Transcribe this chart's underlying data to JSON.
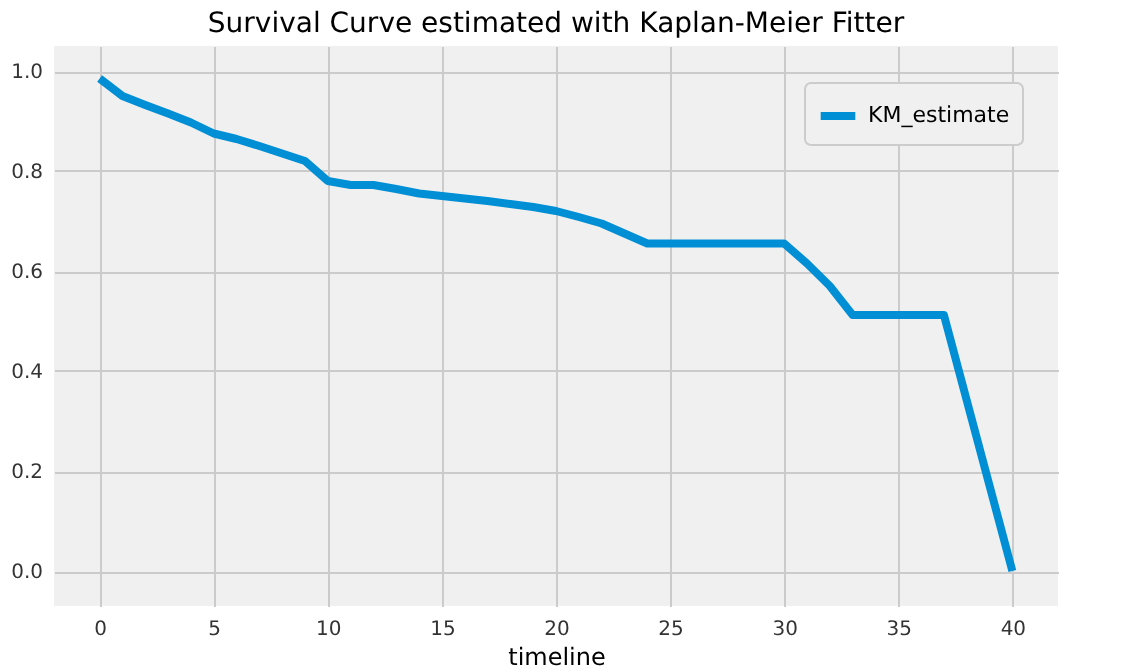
{
  "chart_data": {
    "type": "line",
    "title": "Survival Curve estimated with Kaplan-Meier Fitter",
    "xlabel": "timeline",
    "x": [
      0,
      1,
      2,
      3,
      4,
      5,
      6,
      7,
      8,
      9,
      10,
      11,
      12,
      13,
      14,
      15,
      16,
      17,
      18,
      19,
      20,
      21,
      22,
      23,
      24,
      25,
      26,
      27,
      28,
      29,
      30,
      31,
      32,
      33,
      34,
      35,
      36,
      37,
      40
    ],
    "series": [
      {
        "name": "KM_estimate",
        "color": "#008fd5",
        "values": [
          0.985,
          0.95,
          0.932,
          0.915,
          0.897,
          0.875,
          0.864,
          0.85,
          0.835,
          0.82,
          0.78,
          0.772,
          0.772,
          0.764,
          0.755,
          0.75,
          0.745,
          0.74,
          0.734,
          0.728,
          0.72,
          0.708,
          0.695,
          0.675,
          0.655,
          0.655,
          0.655,
          0.655,
          0.655,
          0.655,
          0.655,
          0.615,
          0.57,
          0.512,
          0.512,
          0.512,
          0.512,
          0.512,
          0.0
        ]
      }
    ],
    "xlim": [
      -2,
      42
    ],
    "xticks": [
      0,
      5,
      10,
      15,
      20,
      25,
      30,
      35,
      40
    ],
    "ylim": [
      -0.07,
      1.05
    ],
    "yticks": [
      {
        "value": 0,
        "label": "0.0"
      },
      0.2,
      0.4,
      0.6,
      0.8,
      {
        "value": 1,
        "label": "1.0"
      }
    ],
    "grid": true,
    "legend": "top right",
    "marker": "none",
    "line_style": "solid"
  }
}
